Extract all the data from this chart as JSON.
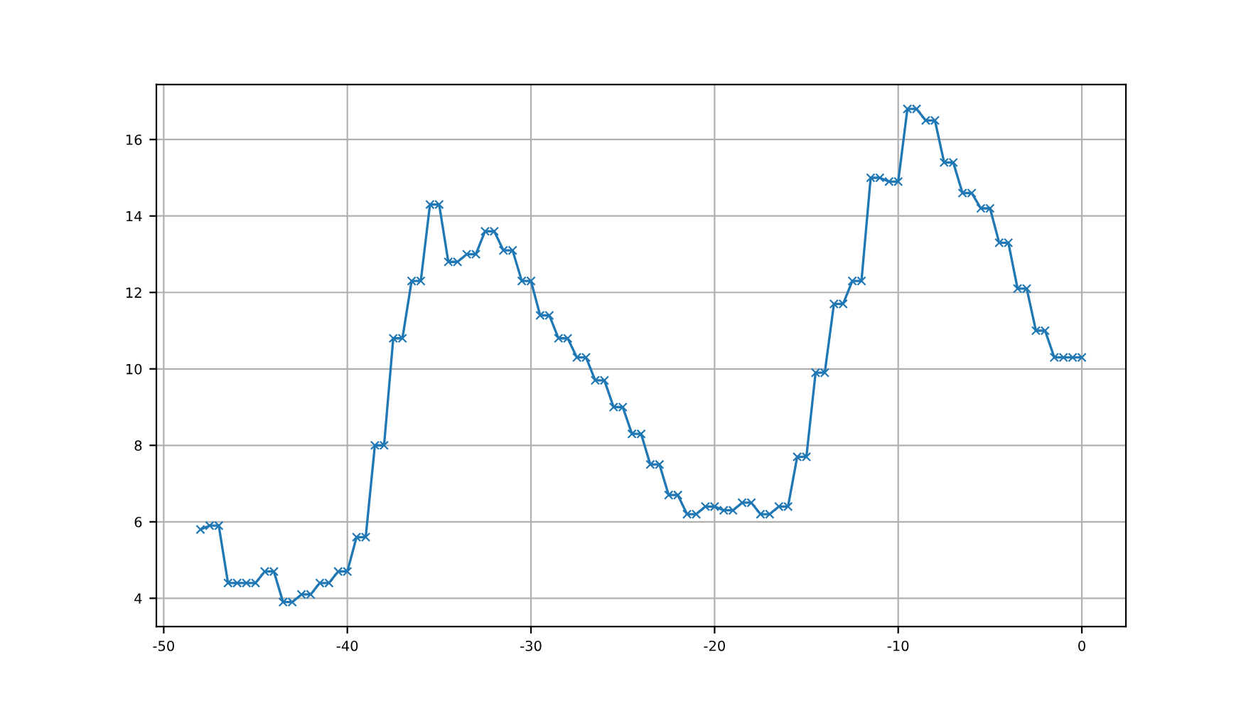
{
  "chart_data": {
    "type": "line",
    "x": [
      -48,
      -47.5,
      -47,
      -46.5,
      -46,
      -45.5,
      -45,
      -44.5,
      -44,
      -43.5,
      -43,
      -42.5,
      -42,
      -41.5,
      -41,
      -40.5,
      -40,
      -39.5,
      -39,
      -38.5,
      -38,
      -37.5,
      -37,
      -36.5,
      -36,
      -35.5,
      -35,
      -34.5,
      -34,
      -33.5,
      -33,
      -32.5,
      -32,
      -31.5,
      -31,
      -30.5,
      -30,
      -29.5,
      -29,
      -28.5,
      -28,
      -27.5,
      -27,
      -26.5,
      -26,
      -25.5,
      -25,
      -24.5,
      -24,
      -23.5,
      -23,
      -22.5,
      -22,
      -21.5,
      -21,
      -20.5,
      -20,
      -19.5,
      -19,
      -18.5,
      -18,
      -17.5,
      -17,
      -16.5,
      -16,
      -15.5,
      -15,
      -14.5,
      -14,
      -13.5,
      -13,
      -12.5,
      -12,
      -11.5,
      -11,
      -10.5,
      -10,
      -9.5,
      -9,
      -8.5,
      -8,
      -7.5,
      -7,
      -6.5,
      -6,
      -5.5,
      -5,
      -4.5,
      -4,
      -3.5,
      -3,
      -2.5,
      -2,
      -1.5,
      -1,
      -0.5,
      0
    ],
    "series": [
      {
        "color": "#1f77b4",
        "values": [
          5.8,
          5.9,
          5.9,
          4.4,
          4.4,
          4.4,
          4.4,
          4.7,
          4.7,
          3.9,
          3.9,
          4.1,
          4.1,
          4.4,
          4.4,
          4.7,
          4.7,
          5.6,
          5.6,
          8.0,
          8.0,
          10.8,
          10.8,
          12.3,
          12.3,
          14.3,
          14.3,
          12.8,
          12.8,
          13.0,
          13.0,
          13.6,
          13.6,
          13.1,
          13.1,
          12.3,
          12.3,
          11.4,
          11.4,
          10.8,
          10.8,
          10.3,
          10.3,
          9.7,
          9.7,
          9.0,
          9.0,
          8.3,
          8.3,
          7.5,
          7.5,
          6.7,
          6.7,
          6.2,
          6.2,
          6.4,
          6.4,
          6.3,
          6.3,
          6.5,
          6.5,
          6.2,
          6.2,
          6.4,
          6.4,
          7.7,
          7.7,
          9.9,
          9.9,
          11.7,
          11.7,
          12.3,
          12.3,
          15.0,
          15.0,
          14.9,
          14.9,
          16.8,
          16.8,
          16.5,
          16.5,
          15.4,
          15.4,
          14.6,
          14.6,
          14.2,
          14.2,
          13.3,
          13.3,
          12.1,
          12.1,
          11.0,
          11.0,
          10.3,
          10.3,
          10.3,
          10.3
        ]
      }
    ],
    "xlim": [
      -50.4,
      2.4
    ],
    "xticks": [
      -50,
      -40,
      -30,
      -20,
      -10,
      0
    ],
    "ylim": [
      3.26,
      17.44
    ],
    "yticks": [
      4,
      6,
      8,
      10,
      12,
      14,
      16
    ],
    "grid": true,
    "marker": "cross",
    "line_style": "solid"
  }
}
